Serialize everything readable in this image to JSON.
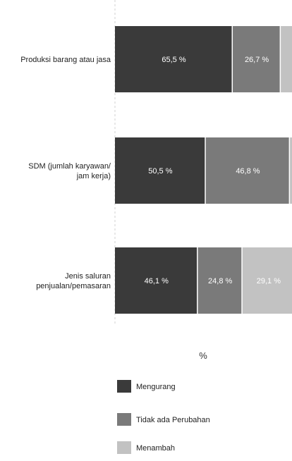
{
  "chart_data": {
    "type": "bar",
    "orientation": "horizontal",
    "stacked": true,
    "categories": [
      "Produksi barang atau jasa",
      "SDM (jumlah karyawan/ jam kerja)",
      "Jenis saluran penjualan/pemasaran"
    ],
    "series": [
      {
        "name": "Mengurang",
        "values": [
          65.5,
          50.5,
          46.1
        ],
        "labels": [
          "65,5 %",
          "50,5 %",
          "46,1 %"
        ],
        "color": "#3a3a3a"
      },
      {
        "name": "Tidak ada Perubahan",
        "values": [
          26.7,
          46.8,
          24.8
        ],
        "labels": [
          "26,7 %",
          "46,8 %",
          "24,8 %"
        ],
        "color": "#7a7a7a"
      },
      {
        "name": "Menambah",
        "values": [
          7.8,
          2.7,
          29.1
        ],
        "labels": [
          "",
          "",
          "29,1 %"
        ],
        "color": "#c2c2c2"
      }
    ],
    "xlabel": "%",
    "xlim": [
      0,
      100
    ],
    "grid": false,
    "legend_position": "bottom-left"
  }
}
